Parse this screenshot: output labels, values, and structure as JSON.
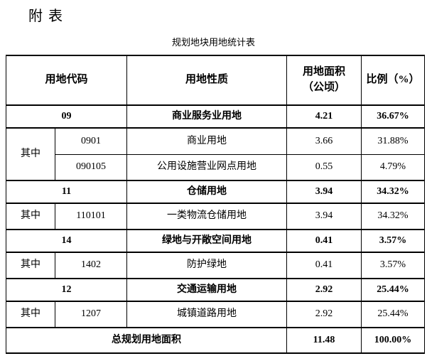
{
  "page": {
    "heading": "附表",
    "table_title": "规划地块用地统计表"
  },
  "table": {
    "header": {
      "code": "用地代码",
      "nature": "用地性质",
      "area_line1": "用地面积",
      "area_line2": "（公顷）",
      "ratio": "比例（%）"
    },
    "subgroup_label": "其中",
    "groups": [
      {
        "code": "09",
        "nature": "商业服务业用地",
        "area": "4.21",
        "ratio": "36.67%",
        "children": [
          {
            "code": "0901",
            "nature": "商业用地",
            "area": "3.66",
            "ratio": "31.88%"
          },
          {
            "code": "090105",
            "nature": "公用设施营业网点用地",
            "area": "0.55",
            "ratio": "4.79%"
          }
        ]
      },
      {
        "code": "11",
        "nature": "仓储用地",
        "area": "3.94",
        "ratio": "34.32%",
        "children": [
          {
            "code": "110101",
            "nature": "一类物流仓储用地",
            "area": "3.94",
            "ratio": "34.32%"
          }
        ]
      },
      {
        "code": "14",
        "nature": "绿地与开敞空间用地",
        "area": "0.41",
        "ratio": "3.57%",
        "children": [
          {
            "code": "1402",
            "nature": "防护绿地",
            "area": "0.41",
            "ratio": "3.57%"
          }
        ]
      },
      {
        "code": "12",
        "nature": "交通运输用地",
        "area": "2.92",
        "ratio": "25.44%",
        "children": [
          {
            "code": "1207",
            "nature": "城镇道路用地",
            "area": "2.92",
            "ratio": "25.44%"
          }
        ]
      }
    ],
    "total": {
      "label": "总规划用地面积",
      "area": "11.48",
      "ratio": "100.00%"
    }
  }
}
